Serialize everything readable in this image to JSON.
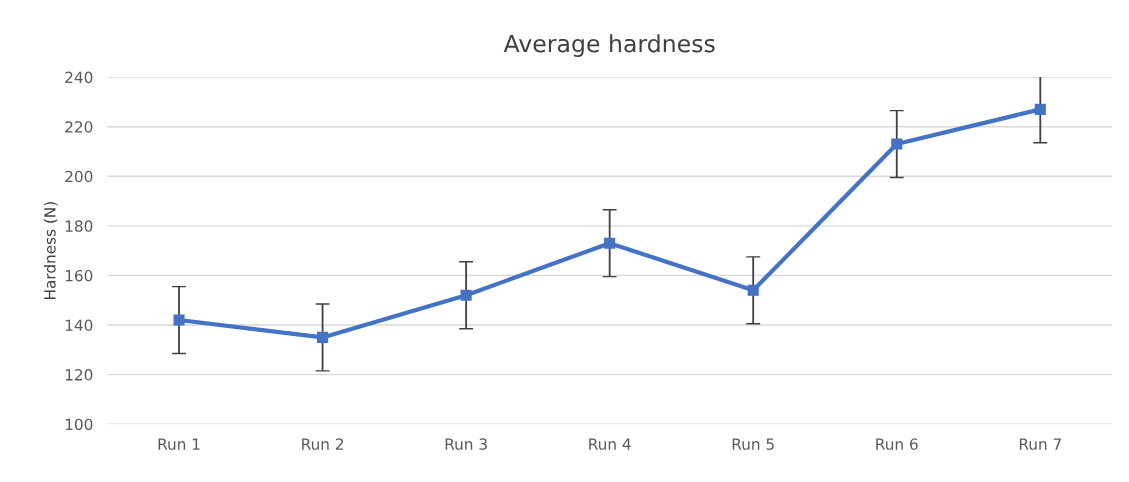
{
  "chart_data": {
    "type": "line",
    "title": "Average hardness",
    "ylabel": "Hardness (N)",
    "categories": [
      "Run 1",
      "Run 2",
      "Run 3",
      "Run 4",
      "Run 5",
      "Run 6",
      "Run 7"
    ],
    "series": [
      {
        "color": "#4472c4",
        "values": [
          142,
          135,
          152,
          173,
          154,
          213,
          227
        ],
        "errors": [
          13.5,
          13.5,
          13.5,
          13.5,
          13.5,
          13.5,
          13.5
        ]
      }
    ],
    "ylim": [
      100,
      240
    ],
    "yticks": [
      100,
      120,
      140,
      160,
      180,
      200,
      220,
      240
    ],
    "grid": "y",
    "marker": "square",
    "line_style": "solid"
  }
}
